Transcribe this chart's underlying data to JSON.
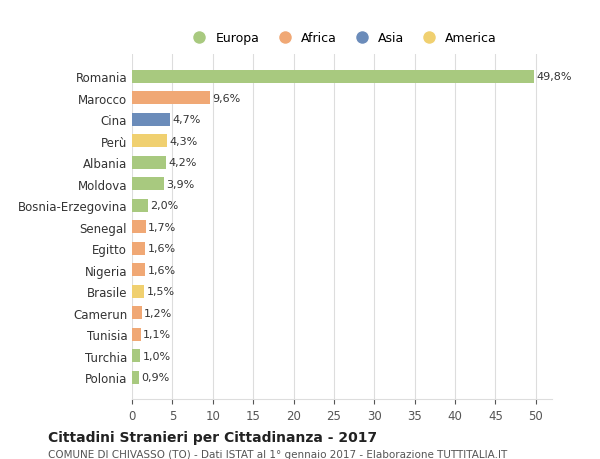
{
  "countries": [
    "Romania",
    "Marocco",
    "Cina",
    "Perù",
    "Albania",
    "Moldova",
    "Bosnia-Erzegovina",
    "Senegal",
    "Egitto",
    "Nigeria",
    "Brasile",
    "Camerun",
    "Tunisia",
    "Turchia",
    "Polonia"
  ],
  "values": [
    49.8,
    9.6,
    4.7,
    4.3,
    4.2,
    3.9,
    2.0,
    1.7,
    1.6,
    1.6,
    1.5,
    1.2,
    1.1,
    1.0,
    0.9
  ],
  "labels": [
    "49,8%",
    "9,6%",
    "4,7%",
    "4,3%",
    "4,2%",
    "3,9%",
    "2,0%",
    "1,7%",
    "1,6%",
    "1,6%",
    "1,5%",
    "1,2%",
    "1,1%",
    "1,0%",
    "0,9%"
  ],
  "continents": [
    "Europa",
    "Africa",
    "Asia",
    "America",
    "Europa",
    "Europa",
    "Europa",
    "Africa",
    "Africa",
    "Africa",
    "America",
    "Africa",
    "Africa",
    "Europa",
    "Europa"
  ],
  "colors": {
    "Europa": "#a8c97f",
    "Africa": "#f0a875",
    "Asia": "#6b8cba",
    "America": "#f0d070"
  },
  "legend_order": [
    "Europa",
    "Africa",
    "Asia",
    "America"
  ],
  "xlim": [
    0,
    52
  ],
  "xticks": [
    0,
    5,
    10,
    15,
    20,
    25,
    30,
    35,
    40,
    45,
    50
  ],
  "title": "Cittadini Stranieri per Cittadinanza - 2017",
  "subtitle": "COMUNE DI CHIVASSO (TO) - Dati ISTAT al 1° gennaio 2017 - Elaborazione TUTTITALIA.IT",
  "bg_color": "#ffffff",
  "grid_color": "#dddddd",
  "bar_height": 0.6
}
